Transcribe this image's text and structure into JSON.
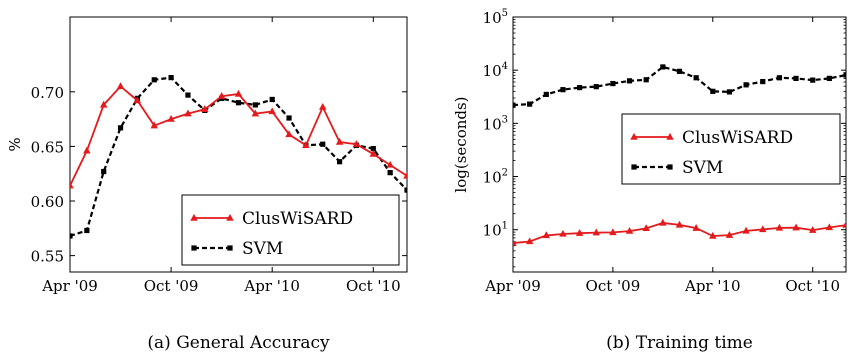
{
  "chart_data": [
    {
      "type": "line",
      "caption": "(a) General Accuracy",
      "ylabel": "%",
      "xlabel": "",
      "ylim": [
        0.535,
        0.7685
      ],
      "yticks": [
        0.55,
        0.6,
        0.65,
        0.7
      ],
      "ytick_labels": [
        "0.55",
        "0.60",
        "0.65",
        "0.70"
      ],
      "xlim": [
        0,
        20
      ],
      "xticks": [
        0,
        6,
        12,
        18
      ],
      "xtick_labels": [
        "Apr '09",
        "Oct '09",
        "Apr '10",
        "Oct '10"
      ],
      "legend": "bottom-right",
      "grid": false,
      "series": [
        {
          "name": "ClusWiSARD",
          "color": "#e41a1c",
          "style": "solid",
          "marker": "triangle",
          "x": [
            0,
            1,
            2,
            3,
            4,
            5,
            6,
            7,
            8,
            9,
            10,
            11,
            12,
            13,
            14,
            15,
            16,
            17,
            18,
            19,
            20
          ],
          "values": [
            0.614,
            0.646,
            0.688,
            0.705,
            0.692,
            0.669,
            0.675,
            0.68,
            0.684,
            0.696,
            0.698,
            0.68,
            0.682,
            0.661,
            0.651,
            0.686,
            0.654,
            0.652,
            0.643,
            0.633,
            0.623
          ]
        },
        {
          "name": "SVM",
          "color": "#000000",
          "style": "dashed",
          "marker": "square",
          "x": [
            0,
            1,
            2,
            3,
            4,
            5,
            6,
            7,
            8,
            9,
            10,
            11,
            12,
            13,
            14,
            15,
            16,
            17,
            18,
            19,
            20
          ],
          "values": [
            0.568,
            0.573,
            0.627,
            0.667,
            0.694,
            0.711,
            0.713,
            0.697,
            0.683,
            0.694,
            0.69,
            0.688,
            0.693,
            0.676,
            0.651,
            0.652,
            0.636,
            0.651,
            0.648,
            0.626,
            0.61
          ]
        }
      ]
    },
    {
      "type": "line",
      "caption": "(b) Training time",
      "ylabel": "log(seconds)",
      "xlabel": "",
      "yscale": "log",
      "ylim": [
        1.6,
        100000
      ],
      "yticks": [
        10,
        100,
        1000,
        10000,
        100000
      ],
      "ytick_labels": [
        "10^1",
        "10^2",
        "10^3",
        "10^4",
        "10^5"
      ],
      "xlim": [
        0,
        20
      ],
      "xticks": [
        0,
        6,
        12,
        18
      ],
      "xtick_labels": [
        "Apr '09",
        "Oct '09",
        "Apr '10",
        "Oct '10"
      ],
      "legend": "center-right",
      "grid": false,
      "series": [
        {
          "name": "ClusWiSARD",
          "color": "#e41a1c",
          "style": "solid",
          "marker": "triangle",
          "x": [
            0,
            1,
            2,
            3,
            4,
            5,
            6,
            7,
            8,
            9,
            10,
            11,
            12,
            13,
            14,
            15,
            16,
            17,
            18,
            19,
            20
          ],
          "values": [
            5.6,
            6.0,
            7.8,
            8.3,
            8.6,
            8.8,
            8.9,
            9.4,
            10.6,
            13.4,
            12.3,
            10.7,
            7.6,
            7.9,
            9.5,
            10.1,
            10.8,
            10.9,
            9.8,
            11.0,
            12.2
          ]
        },
        {
          "name": "SVM",
          "color": "#000000",
          "style": "dashed",
          "marker": "square",
          "x": [
            0,
            1,
            2,
            3,
            4,
            5,
            6,
            7,
            8,
            9,
            10,
            11,
            12,
            13,
            14,
            15,
            16,
            17,
            18,
            19,
            20
          ],
          "values": [
            2200,
            2300,
            3500,
            4300,
            4700,
            4900,
            5600,
            6300,
            6600,
            11500,
            9500,
            7200,
            4000,
            3900,
            5300,
            6100,
            7200,
            7000,
            6500,
            7000,
            8100
          ]
        }
      ]
    }
  ]
}
